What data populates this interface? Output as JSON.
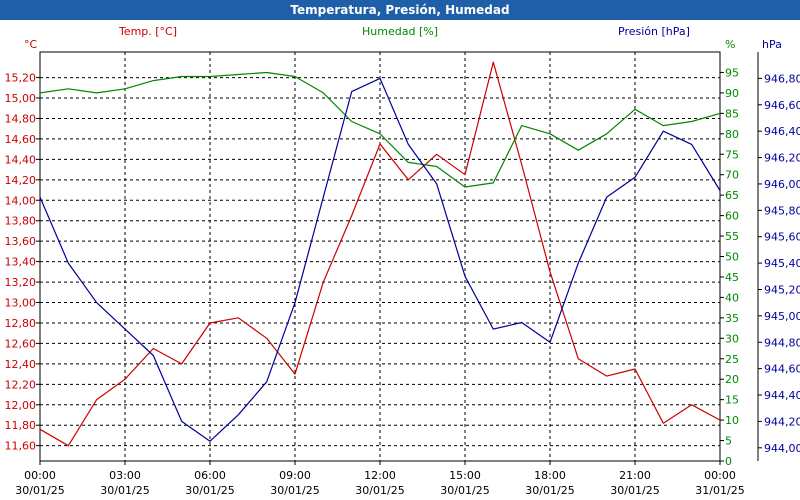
{
  "chart_data": {
    "type": "line",
    "title": "Temperatura, Presión, Humedad",
    "x_tick_times": [
      "00:00",
      "03:00",
      "06:00",
      "09:00",
      "12:00",
      "15:00",
      "18:00",
      "21:00",
      "00:00"
    ],
    "x_tick_dates": [
      "30/01/25",
      "30/01/25",
      "30/01/25",
      "30/01/25",
      "30/01/25",
      "30/01/25",
      "30/01/25",
      "30/01/25",
      "31/01/25"
    ],
    "x": [
      0,
      1,
      2,
      3,
      4,
      5,
      6,
      7,
      8,
      9,
      10,
      11,
      12,
      13,
      14,
      15,
      16,
      17,
      18,
      19,
      20,
      21,
      22,
      23,
      24
    ],
    "axes": {
      "temperature": {
        "label": "Temp. [°C]",
        "unit": "°C",
        "color": "#cc0000",
        "ylim": [
          11.45,
          15.45
        ],
        "ticks": [
          "11,60",
          "11,80",
          "12,00",
          "12,20",
          "12,40",
          "12,60",
          "12,80",
          "13,00",
          "13,20",
          "13,40",
          "13,60",
          "13,80",
          "14,00",
          "14,20",
          "14,40",
          "14,60",
          "14,80",
          "15,00",
          "15,20"
        ]
      },
      "humidity": {
        "label": "Humedad [%]",
        "unit": "%",
        "color": "#008800",
        "ylim": [
          0,
          100
        ],
        "ticks": [
          "0",
          "5",
          "10",
          "15",
          "20",
          "25",
          "30",
          "35",
          "40",
          "45",
          "50",
          "55",
          "60",
          "65",
          "70",
          "75",
          "80",
          "85",
          "90",
          "95"
        ]
      },
      "pressure": {
        "label": "Presión [hPa]",
        "unit": "hPa",
        "color": "#000099",
        "ylim": [
          943.9,
          947.0
        ],
        "ticks": [
          "944,00",
          "944,20",
          "944,40",
          "944,60",
          "944,80",
          "945,00",
          "945,20",
          "945,40",
          "945,60",
          "945,80",
          "946,00",
          "946,20",
          "946,40",
          "946,60",
          "946,80"
        ]
      }
    },
    "series": [
      {
        "name": "Temperatura",
        "axis": "temperature",
        "values": [
          11.76,
          11.6,
          12.05,
          12.25,
          12.55,
          12.4,
          12.8,
          12.85,
          12.65,
          12.3,
          13.2,
          13.85,
          14.55,
          14.2,
          14.45,
          14.25,
          15.35,
          14.35,
          13.3,
          12.45,
          12.28,
          12.35,
          11.82,
          12.0,
          11.85
        ]
      },
      {
        "name": "Humedad",
        "axis": "humidity",
        "values": [
          90,
          91,
          90,
          91,
          93,
          94,
          94,
          94.5,
          95,
          94,
          90,
          83,
          80,
          73,
          72,
          67,
          68,
          82,
          80,
          76,
          80,
          86,
          82,
          83,
          85
        ]
      },
      {
        "name": "Presión",
        "axis": "pressure",
        "values": [
          945.9,
          945.4,
          945.1,
          944.9,
          944.7,
          944.2,
          944.05,
          944.25,
          944.5,
          945.1,
          945.9,
          946.7,
          946.8,
          946.3,
          946.0,
          945.3,
          944.9,
          944.95,
          944.8,
          945.4,
          945.9,
          946.05,
          946.4,
          946.3,
          945.95
        ]
      }
    ]
  }
}
